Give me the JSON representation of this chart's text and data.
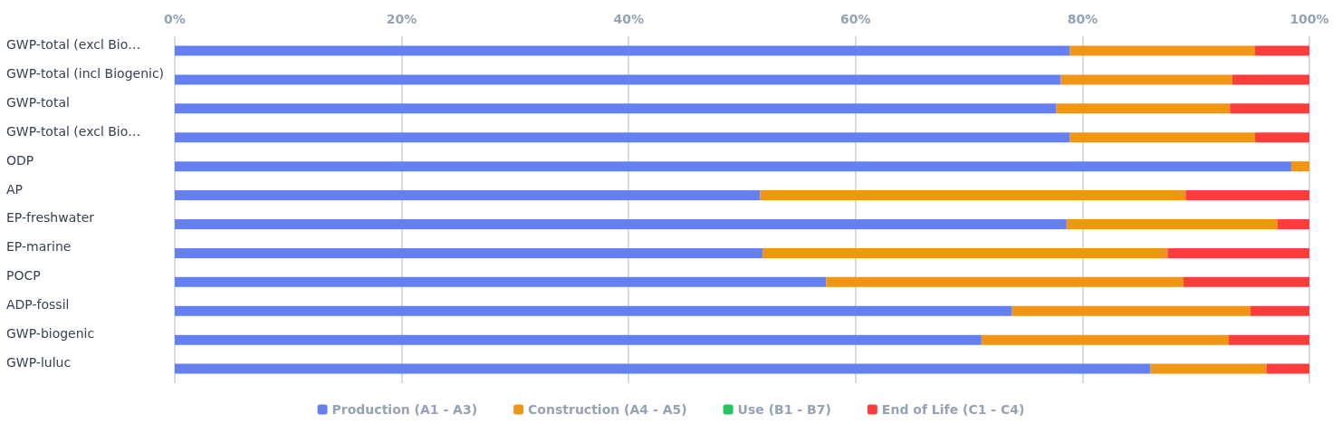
{
  "chart_data": {
    "type": "bar",
    "orientation": "horizontal",
    "stacked": true,
    "categories": [
      "GWP-total (excl Bio…",
      "GWP-total (incl Biogenic)",
      "GWP-total",
      "GWP-total (excl Bio…",
      "ODP",
      "AP",
      "EP-freshwater",
      "EP-marine",
      "POCP",
      "ADP-fossil",
      "GWP-biogenic",
      "GWP-luluc"
    ],
    "series": [
      {
        "name": "Production (A1 - A3)",
        "color": "#6580f0",
        "values": [
          78.9,
          78.1,
          77.7,
          78.9,
          98.4,
          51.6,
          78.6,
          51.8,
          57.4,
          73.8,
          71.1,
          86.0
        ]
      },
      {
        "name": "Construction (A4 - A5)",
        "color": "#f09615",
        "values": [
          16.3,
          15.1,
          15.3,
          16.3,
          1.6,
          37.5,
          18.6,
          35.7,
          31.5,
          21.0,
          21.8,
          10.2
        ]
      },
      {
        "name": "Use (B1 - B7)",
        "color": "#22c55e",
        "values": [
          0,
          0,
          0,
          0,
          0,
          0,
          0,
          0,
          0,
          0,
          0,
          0
        ]
      },
      {
        "name": "End of Life (C1 - C4)",
        "color": "#fd3c3c",
        "values": [
          4.8,
          6.8,
          7.0,
          4.8,
          0,
          10.9,
          2.8,
          12.5,
          11.1,
          5.2,
          7.1,
          3.8
        ]
      }
    ],
    "xlim": [
      0,
      100
    ],
    "xticks": [
      {
        "value": 0,
        "label": "0%"
      },
      {
        "value": 20,
        "label": "20%"
      },
      {
        "value": 40,
        "label": "40%"
      },
      {
        "value": 60,
        "label": "60%"
      },
      {
        "value": 80,
        "label": "80%"
      },
      {
        "value": 100,
        "label": "100%"
      }
    ],
    "grid": "x",
    "legend": "bottom"
  }
}
